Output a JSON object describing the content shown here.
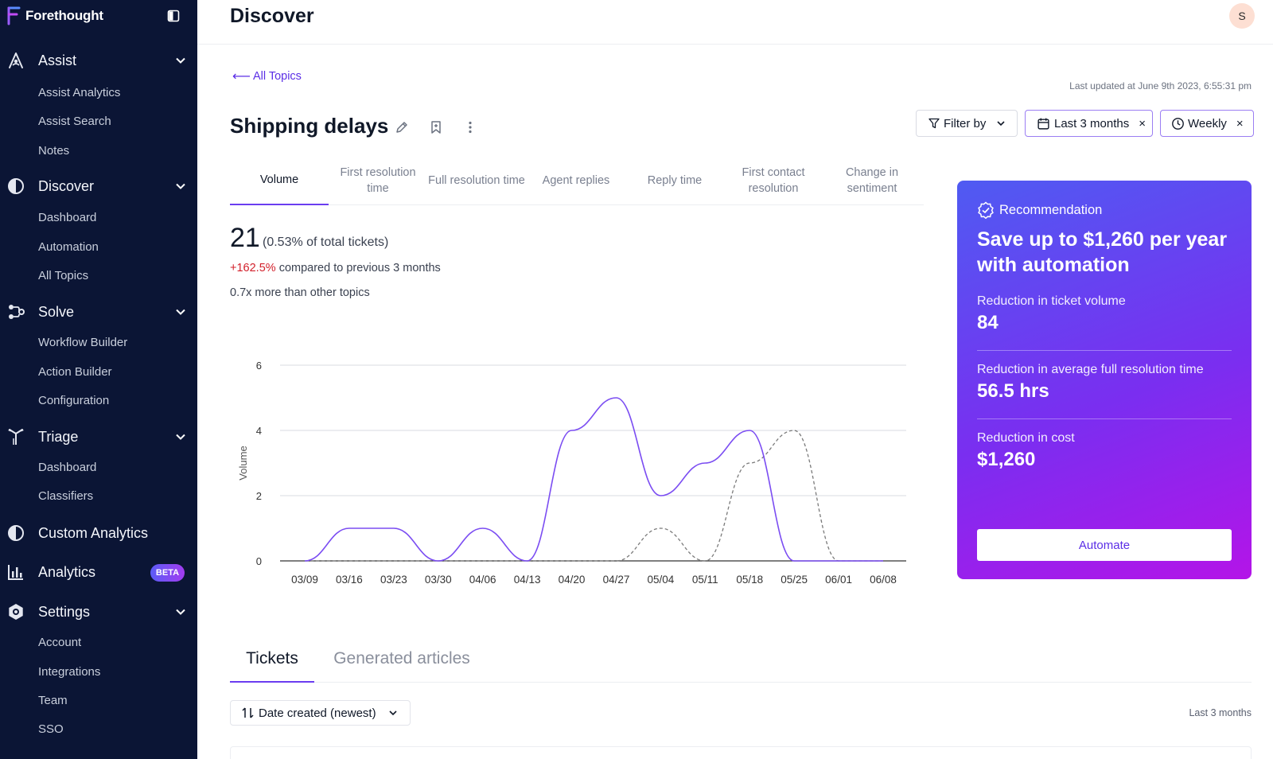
{
  "brand": {
    "name": "Forethought"
  },
  "sidebar": {
    "sections": [
      {
        "label": "Assist",
        "icon": "assist-icon",
        "items": [
          "Assist Analytics",
          "Assist Search",
          "Notes"
        ]
      },
      {
        "label": "Discover",
        "icon": "discover-icon",
        "items": [
          "Dashboard",
          "Automation",
          "All Topics"
        ]
      },
      {
        "label": "Solve",
        "icon": "solve-icon",
        "items": [
          "Workflow Builder",
          "Action Builder",
          "Configuration"
        ]
      },
      {
        "label": "Triage",
        "icon": "triage-icon",
        "items": [
          "Dashboard",
          "Classifiers"
        ]
      },
      {
        "label": "Custom Analytics",
        "icon": "custom-analytics-icon",
        "items": []
      },
      {
        "label": "Analytics",
        "icon": "analytics-icon",
        "badge": "BETA",
        "items": []
      },
      {
        "label": "Settings",
        "icon": "settings-icon",
        "items": [
          "Account",
          "Integrations",
          "Team",
          "SSO"
        ]
      }
    ]
  },
  "header": {
    "title": "Discover",
    "avatar_initial": "S"
  },
  "main": {
    "back_link": "All Topics",
    "last_updated": "Last updated at June 9th 2023, 6:55:31 pm",
    "topic_title": "Shipping delays",
    "filters": {
      "filter_by": "Filter by",
      "range": "Last 3 months",
      "interval": "Weekly"
    },
    "metric_tabs": [
      "Volume",
      "First resolution time",
      "Full resolution time",
      "Agent replies",
      "Reply time",
      "First contact resolution",
      "Change in sentiment"
    ],
    "active_metric": "Volume",
    "summary": {
      "total": "21",
      "share": "(0.53% of total tickets)",
      "change_pct": "+162.5%",
      "change_text": "compared to previous 3 months",
      "relative": "0.7x more than other topics"
    },
    "bottom_tabs": [
      "Tickets",
      "Generated articles"
    ],
    "sort_label": "Date created (newest)",
    "sort_range": "Last 3 months"
  },
  "recommendation": {
    "header": "Recommendation",
    "title": "Save up to $1,260 per year with automation",
    "metrics": [
      {
        "label": "Reduction in ticket volume",
        "value": "84"
      },
      {
        "label": "Reduction in average full resolution time",
        "value": "56.5 hrs"
      },
      {
        "label": "Reduction in cost",
        "value": "$1,260"
      }
    ],
    "button": "Automate"
  },
  "colors": {
    "sidebar_bg": "#0b1535",
    "accent": "#6b3df0",
    "link": "#5b2ee6",
    "negative": "#d21f2a"
  },
  "chart_data": {
    "type": "line",
    "x": [
      "03/09",
      "03/16",
      "03/23",
      "03/30",
      "04/06",
      "04/13",
      "04/20",
      "04/27",
      "05/04",
      "05/11",
      "05/18",
      "05/25",
      "06/01",
      "06/08"
    ],
    "ylabel": "Volume",
    "yticks": [
      0,
      2,
      4,
      6
    ],
    "ylim": [
      0,
      6
    ],
    "grid": true,
    "series": [
      {
        "style": "solid",
        "color": "#7b4df2",
        "values": [
          0,
          1,
          1,
          0,
          1,
          0,
          4,
          5,
          2,
          3,
          4,
          0,
          0,
          0
        ]
      },
      {
        "style": "dashed",
        "color": "#7a7a7a",
        "values": [
          0,
          0,
          0,
          0,
          0,
          0,
          0,
          0,
          1,
          0,
          3,
          4,
          0,
          0
        ]
      }
    ]
  }
}
